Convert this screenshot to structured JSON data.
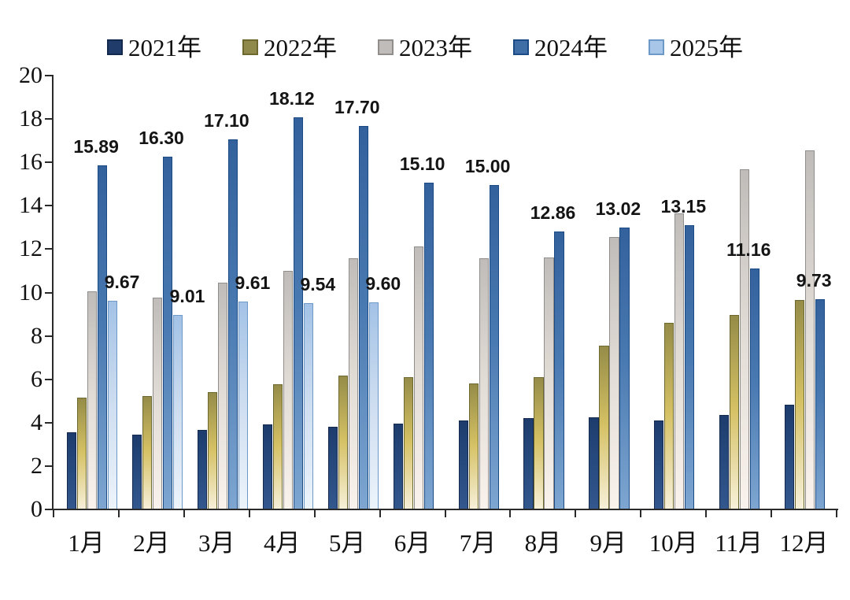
{
  "legend": {
    "items": [
      {
        "label": "2021年",
        "swatch_color": "#1f3c6b",
        "swatch_border": "#132a4e"
      },
      {
        "label": "2022年",
        "swatch_color": "#8f894c",
        "swatch_border": "#6d6730"
      },
      {
        "label": "2023年",
        "swatch_color": "#bfbcb9",
        "swatch_border": "#908d8a"
      },
      {
        "label": "2024年",
        "swatch_color": "#3f6ea6",
        "swatch_border": "#1c4a84"
      },
      {
        "label": "2025年",
        "swatch_color": "#a7c6e8",
        "swatch_border": "#6d99c8"
      }
    ]
  },
  "chart_data": {
    "type": "bar",
    "title": "",
    "xlabel": "",
    "ylabel": "",
    "ylim": [
      0,
      20
    ],
    "ytick_step": 2,
    "ytick_labels": [
      "0",
      "2",
      "4",
      "6",
      "8",
      "10",
      "12",
      "14",
      "16",
      "18",
      "20"
    ],
    "grid": false,
    "legend_position": "top",
    "categories": [
      "1月",
      "2月",
      "3月",
      "4月",
      "5月",
      "6月",
      "7月",
      "8月",
      "9月",
      "10月",
      "11月",
      "12月"
    ],
    "series": [
      {
        "name": "2021年",
        "values": [
          3.6,
          3.5,
          3.7,
          3.95,
          3.85,
          4.0,
          4.15,
          4.25,
          4.3,
          4.15,
          4.4,
          4.85
        ],
        "labels": [
          null,
          null,
          null,
          null,
          null,
          null,
          null,
          null,
          null,
          null,
          null,
          null
        ],
        "gradient": [
          "#1d3c6d",
          "#274a7e",
          "#33588e"
        ],
        "border": "#132a4e",
        "label_dx": 0
      },
      {
        "name": "2022年",
        "values": [
          5.2,
          5.25,
          5.45,
          5.8,
          6.2,
          6.15,
          5.85,
          6.15,
          7.6,
          8.65,
          9.0,
          9.7
        ],
        "labels": [
          null,
          null,
          null,
          null,
          null,
          null,
          null,
          null,
          null,
          null,
          null,
          null
        ],
        "gradient": [
          "#958c48",
          "#d5c164",
          "#f7f0da"
        ],
        "border": "#6d6730",
        "label_dx": 0
      },
      {
        "name": "2023年",
        "values": [
          10.1,
          9.8,
          10.5,
          11.05,
          11.6,
          12.15,
          11.6,
          11.65,
          12.6,
          13.7,
          15.7,
          16.6
        ],
        "labels": [
          null,
          null,
          null,
          null,
          null,
          null,
          null,
          null,
          null,
          null,
          null,
          null
        ],
        "gradient": [
          "#bfbcb9",
          "#e2dcd6",
          "#faf3ed"
        ],
        "border": "#908d8a",
        "label_dx": 0
      },
      {
        "name": "2024年",
        "values": [
          15.89,
          16.3,
          17.1,
          18.12,
          17.7,
          15.1,
          15.0,
          12.86,
          13.02,
          13.15,
          11.16,
          9.73
        ],
        "labels": [
          "15.89",
          "16.30",
          "17.10",
          "18.12",
          "17.70",
          "15.10",
          "15.00",
          "12.86",
          "13.02",
          "13.15",
          "11.16",
          "9.73"
        ],
        "gradient": [
          "#33619c",
          "#4a7ab2",
          "#7ea6d1"
        ],
        "border": "#1c4a84",
        "label_dx": -8
      },
      {
        "name": "2025年",
        "values": [
          9.67,
          9.01,
          9.61,
          9.54,
          9.6,
          null,
          null,
          null,
          null,
          null,
          null,
          null
        ],
        "labels": [
          "9.67",
          "9.01",
          "9.61",
          "9.54",
          "9.60",
          null,
          null,
          null,
          null,
          null,
          null,
          null
        ],
        "gradient": [
          "#a3c2e6",
          "#cdddf0",
          "#edf4fb"
        ],
        "border": "#6d99c8",
        "label_dx": 12
      }
    ]
  },
  "colors": {
    "axis": "#2a2a2a",
    "data_label_text": "#141414",
    "axis_label_text": "#111111",
    "background": "#ffffff"
  }
}
